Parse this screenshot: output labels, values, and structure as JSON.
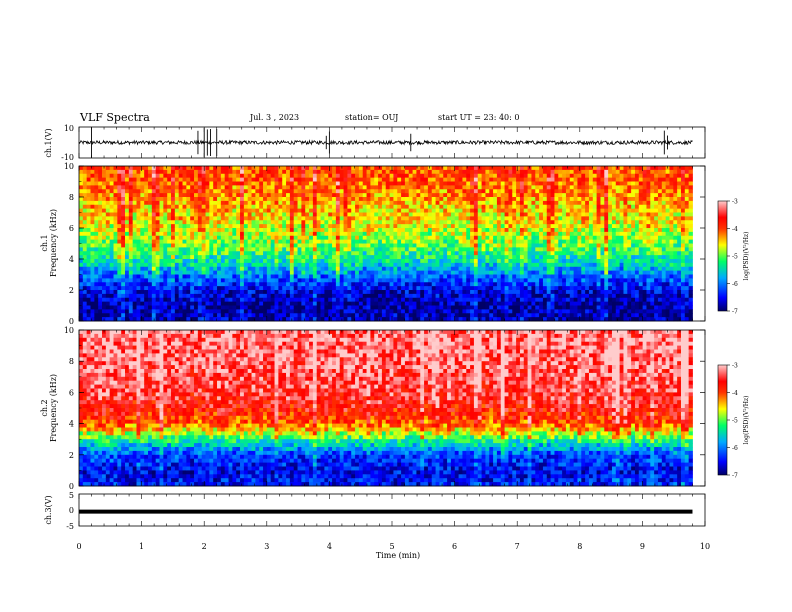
{
  "header": {
    "title": "VLF Spectra",
    "date": "Jul. 3 , 2023",
    "station": "station= OUJ",
    "start": "start UT = 23: 40: 0"
  },
  "colors": {
    "background": "#ffffff",
    "frame": "#000000",
    "waveform": "#000000",
    "colormap": [
      "#000066",
      "#0000ff",
      "#00aaff",
      "#00ff66",
      "#ffff00",
      "#ff3300",
      "#ff0000",
      "#ffcccc"
    ]
  },
  "chart_data": [
    {
      "type": "line",
      "name": "ch1-waveform",
      "ylabel": "ch.1(V)",
      "ylim": [
        -10,
        10
      ],
      "yticks": [
        "10",
        "-10"
      ],
      "xlim": [
        0,
        10
      ],
      "baseline": 0,
      "noise_amplitude": 1.2,
      "spikes": [
        0.2,
        1.9,
        2.0,
        2.05,
        2.1,
        2.2,
        3.95,
        4.0,
        5.3,
        9.35,
        9.4
      ]
    },
    {
      "type": "heatmap",
      "name": "ch1-spectrogram",
      "ylabel": "ch.1 Frequency (kHz)",
      "ylim": [
        0,
        10
      ],
      "yticks": [
        "0",
        "2",
        "4",
        "6",
        "8",
        "10"
      ],
      "xlim": [
        0,
        9.8
      ],
      "zlim": [
        -7,
        -3
      ],
      "colorbar_label": "log(PSD)(V²/Hz)",
      "colorbar_ticks": [
        "-3",
        "-4",
        "-5",
        "-6",
        "-7"
      ],
      "profile": [
        {
          "f": 0.0,
          "v": -6.8
        },
        {
          "f": 1.0,
          "v": -6.9
        },
        {
          "f": 2.0,
          "v": -6.6
        },
        {
          "f": 3.0,
          "v": -6.1
        },
        {
          "f": 4.0,
          "v": -5.5
        },
        {
          "f": 5.0,
          "v": -5.1
        },
        {
          "f": 6.0,
          "v": -4.8
        },
        {
          "f": 7.0,
          "v": -4.6
        },
        {
          "f": 8.0,
          "v": -4.4
        },
        {
          "f": 9.0,
          "v": -4.2
        },
        {
          "f": 10.0,
          "v": -4.1
        }
      ]
    },
    {
      "type": "heatmap",
      "name": "ch2-spectrogram",
      "ylabel": "ch.2 Frequency (kHz)",
      "ylim": [
        0,
        10
      ],
      "yticks": [
        "0",
        "2",
        "4",
        "6",
        "8",
        "10"
      ],
      "xlim": [
        0,
        9.8
      ],
      "zlim": [
        -7,
        -3
      ],
      "colorbar_label": "log(PSD)(V²/Hz)",
      "colorbar_ticks": [
        "-3",
        "-4",
        "-5",
        "-6",
        "-7"
      ],
      "profile": [
        {
          "f": 0.0,
          "v": -6.5
        },
        {
          "f": 1.0,
          "v": -6.6
        },
        {
          "f": 2.0,
          "v": -6.3
        },
        {
          "f": 3.0,
          "v": -5.3
        },
        {
          "f": 4.0,
          "v": -4.2
        },
        {
          "f": 5.0,
          "v": -3.8
        },
        {
          "f": 6.0,
          "v": -3.6
        },
        {
          "f": 7.0,
          "v": -3.5
        },
        {
          "f": 8.0,
          "v": -3.4
        },
        {
          "f": 9.0,
          "v": -3.4
        },
        {
          "f": 10.0,
          "v": -3.4
        }
      ]
    },
    {
      "type": "line",
      "name": "ch3-waveform",
      "ylabel": "ch.3(V)",
      "ylim": [
        -5,
        5
      ],
      "yticks": [
        "5",
        "0",
        "-5"
      ],
      "xlim": [
        0,
        9.8
      ],
      "baseline": -0.5
    }
  ],
  "x_axis": {
    "label": "Time (min)",
    "ticks": [
      "0",
      "1",
      "2",
      "3",
      "4",
      "5",
      "6",
      "7",
      "8",
      "9",
      "10"
    ]
  }
}
